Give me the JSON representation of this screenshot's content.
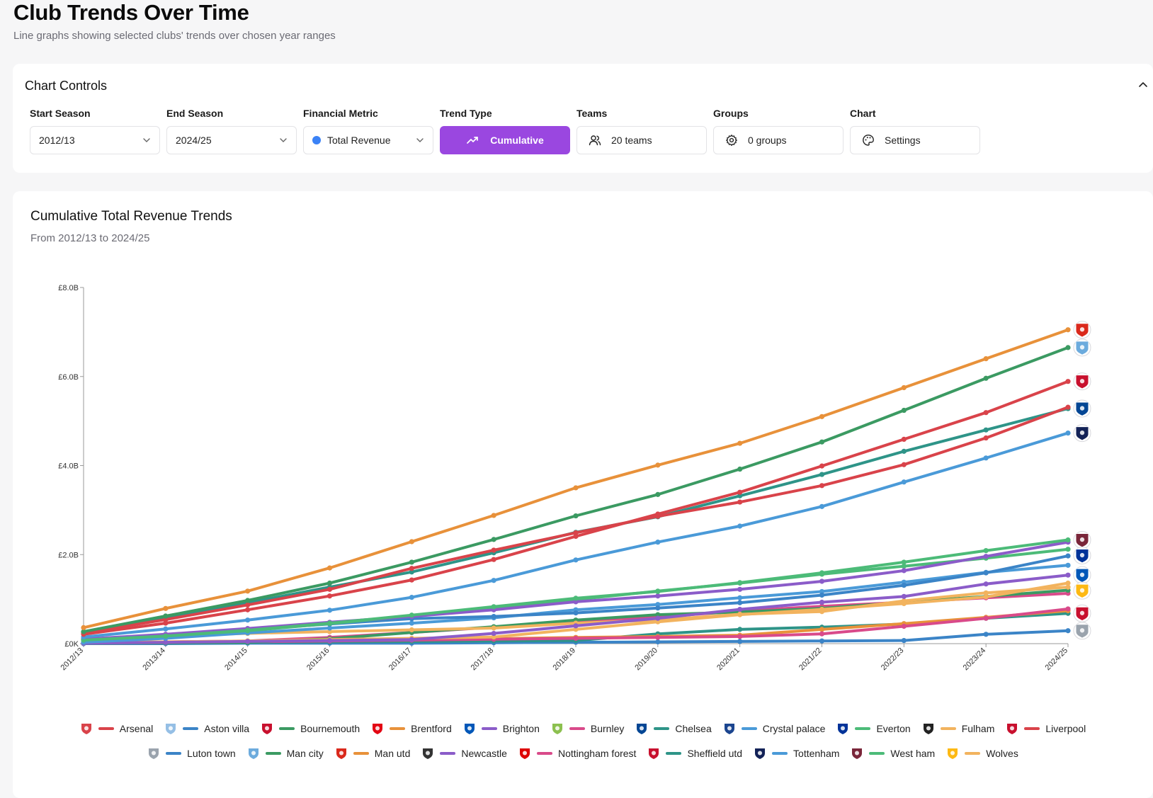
{
  "header": {
    "title": "Club Trends Over Time",
    "subtitle": "Line graphs showing selected clubs' trends over chosen year ranges"
  },
  "controls": {
    "title": "Chart Controls",
    "start_season": {
      "label": "Start Season",
      "value": "2012/13"
    },
    "end_season": {
      "label": "End Season",
      "value": "2024/25"
    },
    "metric": {
      "label": "Financial Metric",
      "value": "Total Revenue",
      "color": "#3b82f6"
    },
    "trend_type": {
      "label": "Trend Type",
      "value": "Cumulative"
    },
    "teams": {
      "label": "Teams",
      "value": "20 teams"
    },
    "groups": {
      "label": "Groups",
      "value": "0 groups"
    },
    "chart": {
      "label": "Chart",
      "value": "Settings"
    }
  },
  "chart": {
    "title": "Cumulative Total Revenue Trends",
    "subtitle": "From 2012/13 to 2024/25"
  },
  "chart_data": {
    "type": "line",
    "title": "Cumulative Total Revenue Trends",
    "xlabel": "",
    "ylabel": "",
    "ylim": [
      0,
      8.0
    ],
    "y_unit": "£B",
    "y_ticks": [
      "£0K",
      "£2.0B",
      "£4.0B",
      "£6.0B",
      "£8.0B"
    ],
    "y_tick_values": [
      0,
      2,
      4,
      6,
      8
    ],
    "x": [
      "2012/13",
      "2013/14",
      "2014/15",
      "2015/16",
      "2016/17",
      "2017/18",
      "2018/19",
      "2019/20",
      "2020/21",
      "2021/22",
      "2022/23",
      "2023/24",
      "2024/25"
    ],
    "series": [
      {
        "name": "Man utd",
        "color": "#e8913a",
        "values": [
          0.36,
          0.79,
          1.18,
          1.7,
          2.29,
          2.88,
          3.5,
          4.01,
          4.5,
          5.1,
          5.75,
          6.4,
          7.05
        ]
      },
      {
        "name": "Man city",
        "color": "#3b9a62",
        "values": [
          0.27,
          0.62,
          0.97,
          1.36,
          1.83,
          2.34,
          2.87,
          3.35,
          3.92,
          4.53,
          5.24,
          5.96,
          6.65
        ]
      },
      {
        "name": "Liverpool",
        "color": "#d9434a",
        "values": [
          0.21,
          0.46,
          0.76,
          1.07,
          1.43,
          1.89,
          2.41,
          2.91,
          3.4,
          3.99,
          4.59,
          5.19,
          5.89
        ]
      },
      {
        "name": "Chelsea",
        "color": "#2e9488",
        "values": [
          0.26,
          0.58,
          0.92,
          1.27,
          1.61,
          2.04,
          2.5,
          2.85,
          3.32,
          3.8,
          4.32,
          4.8,
          5.28
        ]
      },
      {
        "name": "Arsenal",
        "color": "#d9434a",
        "values": [
          0.24,
          0.54,
          0.87,
          1.22,
          1.69,
          2.1,
          2.49,
          2.86,
          3.18,
          3.55,
          4.02,
          4.62,
          5.31
        ]
      },
      {
        "name": "Tottenham",
        "color": "#4a9ad8",
        "values": [
          0.15,
          0.33,
          0.53,
          0.75,
          1.04,
          1.42,
          1.88,
          2.28,
          2.64,
          3.08,
          3.63,
          4.17,
          4.73
        ]
      },
      {
        "name": "West ham",
        "color": "#4cbb78",
        "values": [
          0.08,
          0.17,
          0.3,
          0.46,
          0.64,
          0.83,
          1.02,
          1.17,
          1.37,
          1.59,
          1.83,
          2.09,
          2.33
        ]
      },
      {
        "name": "Everton",
        "color": "#4cbb78",
        "values": [
          0.08,
          0.17,
          0.29,
          0.45,
          0.62,
          0.81,
          0.99,
          1.18,
          1.36,
          1.56,
          1.74,
          1.92,
          2.12
        ]
      },
      {
        "name": "Newcastle",
        "color": "#8b5cc9",
        "values": [
          0.1,
          0.21,
          0.34,
          0.48,
          0.61,
          0.76,
          0.94,
          1.07,
          1.22,
          1.4,
          1.64,
          1.96,
          2.28
        ]
      },
      {
        "name": "Aston villa",
        "color": "#3b84c7",
        "values": [
          0.1,
          0.19,
          0.31,
          0.44,
          0.56,
          0.61,
          0.69,
          0.8,
          0.92,
          1.09,
          1.31,
          1.59,
          1.97
        ]
      },
      {
        "name": "Crystal palace",
        "color": "#4a9ad8",
        "values": [
          0.03,
          0.12,
          0.24,
          0.35,
          0.46,
          0.58,
          0.76,
          0.88,
          1.03,
          1.17,
          1.38,
          1.6,
          1.76
        ]
      },
      {
        "name": "Brighton",
        "color": "#8b5cc9",
        "values": [
          0.01,
          0.03,
          0.05,
          0.07,
          0.09,
          0.23,
          0.4,
          0.57,
          0.77,
          0.93,
          1.06,
          1.34,
          1.54
        ]
      },
      {
        "name": "Wolves",
        "color": "#f2b35e",
        "values": [
          0.02,
          0.04,
          0.06,
          0.09,
          0.12,
          0.15,
          0.32,
          0.49,
          0.65,
          0.77,
          0.9,
          1.05,
          1.36
        ]
      },
      {
        "name": "Fulham",
        "color": "#f2b35e",
        "values": [
          0.09,
          0.17,
          0.23,
          0.27,
          0.31,
          0.35,
          0.46,
          0.53,
          0.66,
          0.72,
          0.96,
          1.14,
          1.27
        ]
      },
      {
        "name": "Brentford",
        "color": "#e8913a",
        "values": [
          0.01,
          0.03,
          0.05,
          0.07,
          0.09,
          0.11,
          0.14,
          0.16,
          0.19,
          0.32,
          0.45,
          0.59,
          0.74
        ]
      },
      {
        "name": "Nottingham forest",
        "color": "#d94a8a",
        "values": [
          0.01,
          0.02,
          0.04,
          0.06,
          0.08,
          0.1,
          0.12,
          0.14,
          0.16,
          0.22,
          0.39,
          0.57,
          0.78
        ]
      },
      {
        "name": "Burnley",
        "color": "#d94a8a",
        "values": [
          0.02,
          0.04,
          0.06,
          0.14,
          0.25,
          0.37,
          0.49,
          0.6,
          0.73,
          0.84,
          0.93,
          1.03,
          1.13
        ]
      },
      {
        "name": "Bournemouth",
        "color": "#3b9a62",
        "values": [
          0.01,
          0.02,
          0.03,
          0.11,
          0.25,
          0.38,
          0.53,
          0.65,
          0.71,
          0.79,
          0.93,
          1.06,
          1.2
        ]
      },
      {
        "name": "Sheffield utd",
        "color": "#2e9488",
        "values": [
          0.01,
          0.02,
          0.03,
          0.04,
          0.05,
          0.06,
          0.07,
          0.22,
          0.32,
          0.37,
          0.44,
          0.57,
          0.68
        ]
      },
      {
        "name": "Luton town",
        "color": "#3b84c7",
        "values": [
          0.0,
          0.0,
          0.01,
          0.01,
          0.01,
          0.02,
          0.03,
          0.04,
          0.05,
          0.06,
          0.07,
          0.21,
          0.29
        ]
      }
    ]
  },
  "legend": {
    "row1": [
      {
        "name": "Arsenal",
        "color": "#d9434a",
        "crest": "#d9434a"
      },
      {
        "name": "Aston villa",
        "color": "#3b84c7",
        "crest": "#95bfe5"
      },
      {
        "name": "Bournemouth",
        "color": "#3b9a62",
        "crest": "#c8102e"
      },
      {
        "name": "Brentford",
        "color": "#e8913a",
        "crest": "#e30613"
      },
      {
        "name": "Brighton",
        "color": "#8b5cc9",
        "crest": "#0057b8"
      },
      {
        "name": "Burnley",
        "color": "#d94a8a",
        "crest": "#8cc04f"
      },
      {
        "name": "Chelsea",
        "color": "#2e9488",
        "crest": "#034694"
      },
      {
        "name": "Crystal palace",
        "color": "#4a9ad8",
        "crest": "#1b458f"
      },
      {
        "name": "Everton",
        "color": "#4cbb78",
        "crest": "#003399"
      },
      {
        "name": "Fulham",
        "color": "#f2b35e",
        "crest": "#222222"
      },
      {
        "name": "Liverpool",
        "color": "#d9434a",
        "crest": "#c8102e"
      }
    ],
    "row2": [
      {
        "name": "Luton town",
        "color": "#3b84c7",
        "crest": "#9aa3ad"
      },
      {
        "name": "Man city",
        "color": "#3b9a62",
        "crest": "#6cabdd"
      },
      {
        "name": "Man utd",
        "color": "#e8913a",
        "crest": "#da291c"
      },
      {
        "name": "Newcastle",
        "color": "#8b5cc9",
        "crest": "#333333"
      },
      {
        "name": "Nottingham forest",
        "color": "#d94a8a",
        "crest": "#dd0000"
      },
      {
        "name": "Sheffield utd",
        "color": "#2e9488",
        "crest": "#c8102e"
      },
      {
        "name": "Tottenham",
        "color": "#4a9ad8",
        "crest": "#132257"
      },
      {
        "name": "West ham",
        "color": "#4cbb78",
        "crest": "#7a263a"
      },
      {
        "name": "Wolves",
        "color": "#f2b35e",
        "crest": "#fdb913"
      }
    ]
  },
  "end_crests": [
    {
      "name": "Man utd",
      "color": "#da291c"
    },
    {
      "name": "Man city",
      "color": "#6cabdd"
    },
    {
      "name": "Liverpool",
      "color": "#c8102e"
    },
    {
      "name": "Chelsea",
      "color": "#034694"
    },
    {
      "name": "Tottenham",
      "color": "#132257"
    },
    {
      "name": "West ham",
      "color": "#7a263a"
    },
    {
      "name": "Everton",
      "color": "#003399"
    },
    {
      "name": "Brighton",
      "color": "#0057b8"
    },
    {
      "name": "Wolves",
      "color": "#fdb913"
    },
    {
      "name": "Sheffield utd",
      "color": "#c8102e"
    },
    {
      "name": "Luton town",
      "color": "#9aa3ad"
    }
  ]
}
